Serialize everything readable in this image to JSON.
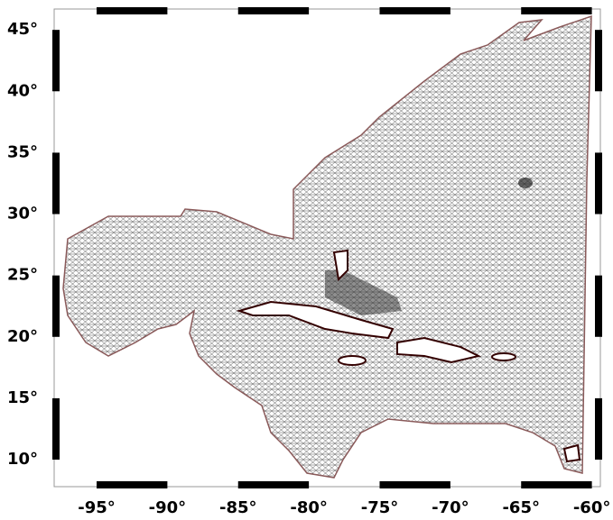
{
  "chart_data": {
    "type": "map",
    "xlim": [
      -98,
      -59.4
    ],
    "ylim": [
      7.8,
      46.7
    ],
    "xticks": [
      {
        "value": -95,
        "label": "-95°"
      },
      {
        "value": -90,
        "label": "-90°"
      },
      {
        "value": -85,
        "label": "-85°"
      },
      {
        "value": -80,
        "label": "-80°"
      },
      {
        "value": -75,
        "label": "-75°"
      },
      {
        "value": -70,
        "label": "-70°"
      },
      {
        "value": -65,
        "label": "-65°"
      },
      {
        "value": -60,
        "label": "-60°"
      }
    ],
    "yticks": [
      {
        "value": 10,
        "label": "10°"
      },
      {
        "value": 15,
        "label": "15°"
      },
      {
        "value": 20,
        "label": "20°"
      },
      {
        "value": 25,
        "label": "25°"
      },
      {
        "value": 30,
        "label": "30°"
      },
      {
        "value": 35,
        "label": "35°"
      },
      {
        "value": 40,
        "label": "40°"
      },
      {
        "value": 45,
        "label": "45°"
      }
    ]
  }
}
